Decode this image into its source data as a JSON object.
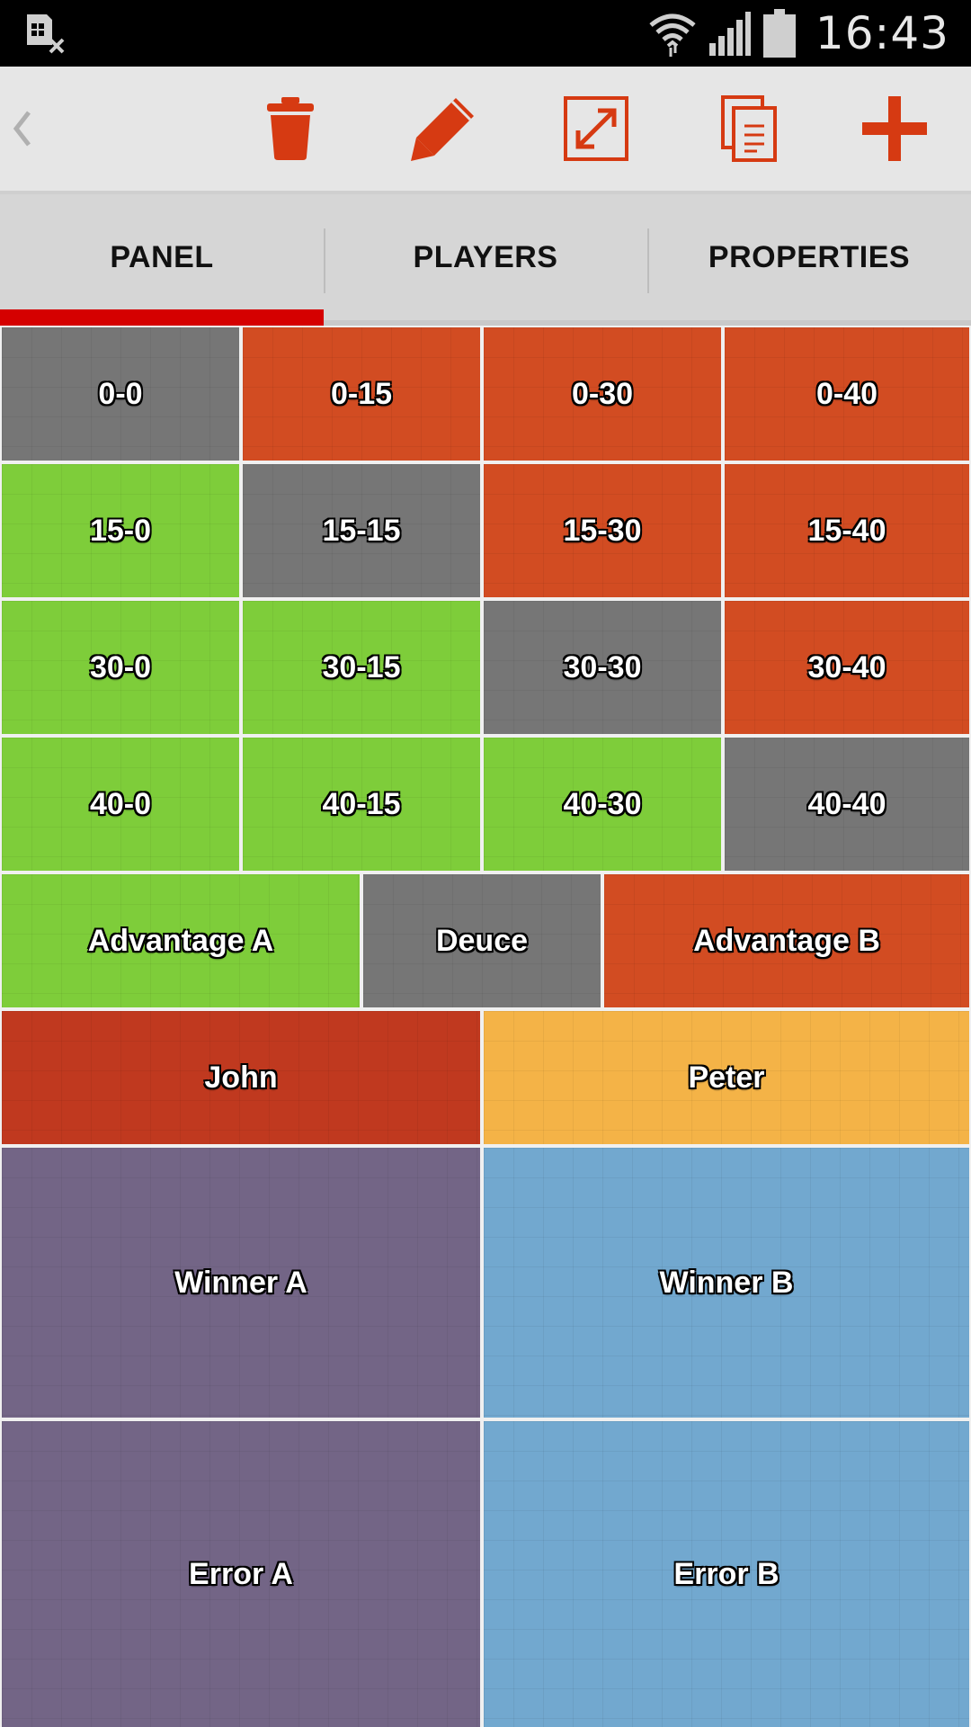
{
  "status_bar": {
    "time": "16:43"
  },
  "toolbar": {
    "back_icon": "chevron-left-icon",
    "actions": [
      "trash-icon",
      "pencil-icon",
      "resize-icon",
      "copy-icon",
      "plus-icon"
    ],
    "accent_color": "#d63a12"
  },
  "tabs": [
    {
      "label": "PANEL",
      "active": true
    },
    {
      "label": "PLAYERS",
      "active": false
    },
    {
      "label": "PROPERTIES",
      "active": false
    }
  ],
  "panel": {
    "scores": {
      "r0": [
        "0-0",
        "0-15",
        "0-30",
        "0-40"
      ],
      "r1": [
        "15-0",
        "15-15",
        "15-30",
        "15-40"
      ],
      "r2": [
        "30-0",
        "30-15",
        "30-30",
        "30-40"
      ],
      "r3": [
        "40-0",
        "40-15",
        "40-30",
        "40-40"
      ]
    },
    "advantage_row": [
      "Advantage A",
      "Deuce",
      "Advantage B"
    ],
    "players": [
      "John",
      "Peter"
    ],
    "winners": [
      "Winner A",
      "Winner B"
    ],
    "errors": [
      "Error A",
      "Error B"
    ]
  },
  "colors": {
    "neutral": "#767676",
    "player_a_point": "#7ecd3a",
    "player_b_point": "#d24c22",
    "player_a": "#c0391f",
    "player_b": "#f4b347",
    "outcome_a": "#736586",
    "outcome_b": "#72a8cf",
    "tab_indicator": "#d50000"
  }
}
